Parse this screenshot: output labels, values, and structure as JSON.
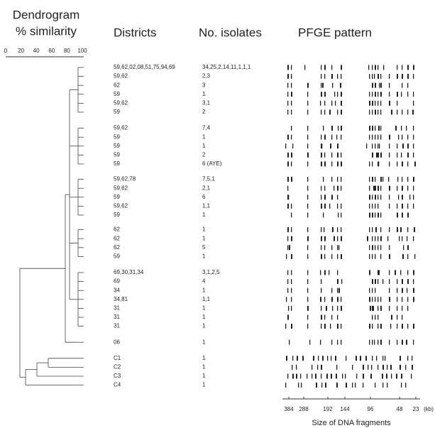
{
  "header": {
    "dendrogram": "Dendrogram",
    "similarity": "% similarity",
    "districts": "Districts",
    "isolates": "No. isolates",
    "pfge": "PFGE pattern"
  },
  "similarity_axis": {
    "ticks": [
      "0",
      "20",
      "40",
      "60",
      "80",
      "100"
    ]
  },
  "rows": [
    [
      "59,62,02,08,51,75,94,69",
      "34,25,2,14,11,1,1,1"
    ],
    [
      "59,62",
      "2,3"
    ],
    [
      "62",
      "3"
    ],
    [
      "59",
      "1"
    ],
    [
      "59,62",
      "3,1"
    ],
    [
      "59",
      "2"
    ],
    [
      "59,62",
      "7,4"
    ],
    [
      "59",
      "1"
    ],
    [
      "59",
      "1"
    ],
    [
      "59",
      "2"
    ],
    [
      "59",
      "6 (AYE)"
    ],
    [
      "59,62,78",
      "7,5,1"
    ],
    [
      "59,62",
      "2,1"
    ],
    [
      "59",
      "6"
    ],
    [
      "59,62",
      "1,1"
    ],
    [
      "59",
      "1"
    ],
    [
      "62",
      "1"
    ],
    [
      "62",
      "1"
    ],
    [
      "62",
      "5"
    ],
    [
      "59",
      "1"
    ],
    [
      "69,30,31,34",
      "3,1,2,5"
    ],
    [
      "69",
      "4"
    ],
    [
      "34",
      "1"
    ],
    [
      "34,81",
      "1,1"
    ],
    [
      "31",
      "1"
    ],
    [
      "31",
      "1"
    ],
    [
      "31",
      "1"
    ],
    [
      "06",
      "1"
    ],
    [
      "C1",
      "1"
    ],
    [
      "C2",
      "1"
    ],
    [
      "C3",
      "1"
    ],
    [
      "C4",
      "1"
    ]
  ],
  "size_axis": {
    "ticks": [
      "384",
      "288",
      "192",
      "144",
      "96",
      "48",
      "23"
    ],
    "unit": "(kb)",
    "label": "Size of DNA fragments"
  }
}
